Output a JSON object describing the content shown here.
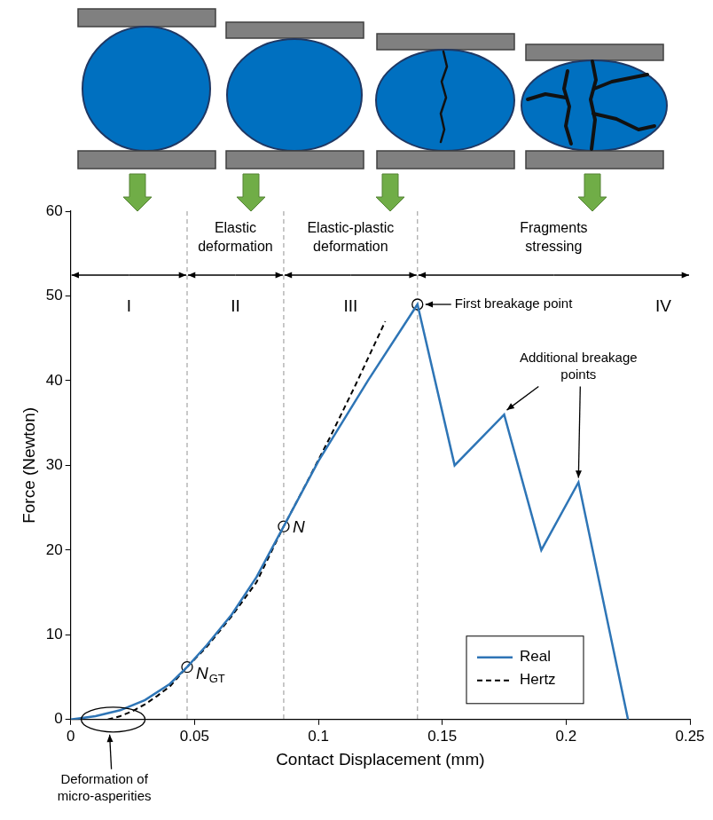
{
  "chart_data": {
    "type": "line",
    "xlabel": "Contact Displacement (mm)",
    "ylabel": "Force (Newton)",
    "xlim": [
      0,
      0.25
    ],
    "xticks": [
      0,
      0.05,
      0.1,
      0.15,
      0.2,
      0.25
    ],
    "ylim": [
      0,
      60
    ],
    "yticks": [
      0,
      10,
      20,
      30,
      40,
      50,
      60
    ],
    "grid": false,
    "legend": "lower right",
    "series": [
      {
        "name": "Real",
        "color": "#2e75b6",
        "line_style": "solid",
        "x": [
          0,
          0.01,
          0.02,
          0.03,
          0.04,
          0.047,
          0.055,
          0.065,
          0.075,
          0.086,
          0.1,
          0.12,
          0.14,
          0.155,
          0.175,
          0.19,
          0.205,
          0.225
        ],
        "values": [
          0,
          0.4,
          1.1,
          2.3,
          4.2,
          6.2,
          8.8,
          12.4,
          16.8,
          22.8,
          30.5,
          40,
          49,
          30,
          36,
          20,
          28,
          0
        ]
      },
      {
        "name": "Hertz",
        "color": "#000000",
        "line_style": "dashed",
        "x": [
          0.015,
          0.02,
          0.025,
          0.03,
          0.035,
          0.04,
          0.047,
          0.055,
          0.065,
          0.075,
          0.086,
          0.095,
          0.105,
          0.115,
          0.127
        ],
        "values": [
          0,
          0.4,
          1.0,
          1.8,
          2.8,
          3.9,
          6.2,
          8.6,
          12.2,
          16.2,
          22.8,
          27.8,
          33.5,
          39.5,
          47
        ]
      }
    ],
    "stages": [
      {
        "label": "I",
        "start": 0,
        "end": 0.047
      },
      {
        "label": "II",
        "header": "Elastic deformation",
        "start": 0.047,
        "end": 0.086
      },
      {
        "label": "III",
        "header": "Elastic-plastic deformation",
        "start": 0.086,
        "end": 0.14
      },
      {
        "label": "IV",
        "header": "Fragments stressing",
        "start": 0.14,
        "end": 0.25
      }
    ],
    "points": [
      {
        "label": "N",
        "subscript": "GT",
        "x": 0.047,
        "y": 6.2
      },
      {
        "label": "N",
        "x": 0.086,
        "y": 22.8
      },
      {
        "x": 0.14,
        "y": 49
      }
    ],
    "annotations": [
      {
        "text": "First breakage point",
        "x": 0.14,
        "y": 49
      },
      {
        "text": "Additional breakage points",
        "targets": [
          {
            "x": 0.175,
            "y": 36
          },
          {
            "x": 0.205,
            "y": 28
          }
        ]
      },
      {
        "text": "Deformation of micro-asperities",
        "x": 0.015,
        "y": 0
      }
    ]
  }
}
